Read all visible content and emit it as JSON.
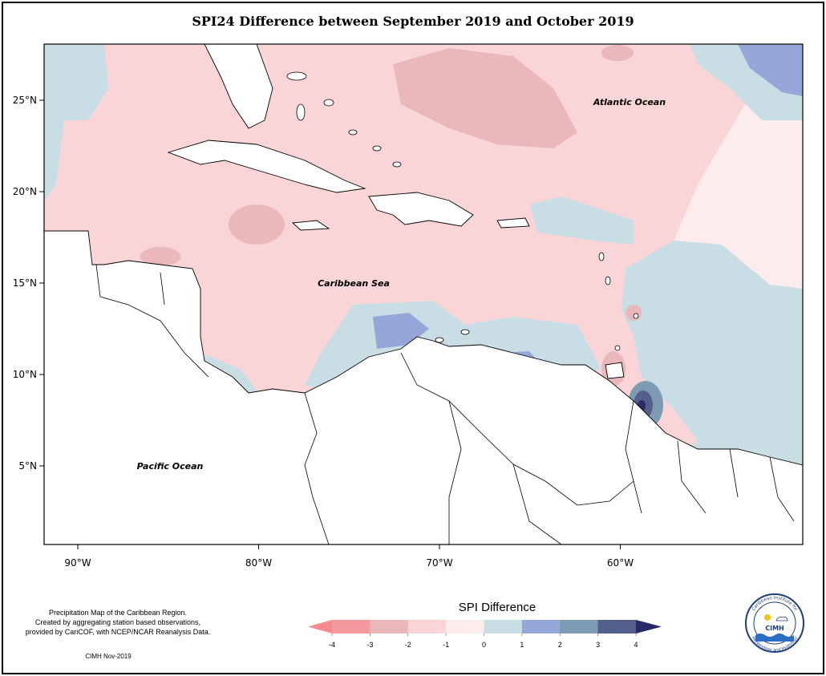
{
  "title": "SPI24 Difference between September 2019 and October 2019",
  "map": {
    "lat_ticks": [
      {
        "value": 25,
        "label": "25°N"
      },
      {
        "value": 20,
        "label": "20°N"
      },
      {
        "value": 15,
        "label": "15°N"
      },
      {
        "value": 10,
        "label": "10°N"
      },
      {
        "value": 5,
        "label": "5°N"
      }
    ],
    "lon_ticks": [
      {
        "value": -90,
        "label": "90°W"
      },
      {
        "value": -80,
        "label": "80°W"
      },
      {
        "value": -70,
        "label": "70°W"
      },
      {
        "value": -60,
        "label": "60°W"
      }
    ],
    "labels": {
      "atlantic": "Atlantic Ocean",
      "caribbean": "Caribbean Sea",
      "pacific": "Pacific Ocean"
    }
  },
  "notes": {
    "line1": "Precipitation Map of the Caribbean Region.",
    "line2": "Created by aggregating station based observations,",
    "line3": "provided by CariCOF, with NCEP/NCAR Reanalysis Data.",
    "credit": "CIMH Nov-2019"
  },
  "legend": {
    "title": "SPI Difference",
    "ticks": [
      "-4",
      "-3",
      "-2",
      "-1",
      "0",
      "1",
      "2",
      "3",
      "4"
    ],
    "colors": [
      "#f4999e",
      "#eab8ba",
      "#f9d5d8",
      "#fdecec",
      "#c8dee4",
      "#95a6d8",
      "#7d9cb4",
      "#545f8b",
      "#2a2e68"
    ],
    "low_arrow_color": "#f58a8e",
    "high_arrow_color": "#262a66"
  },
  "logo": {
    "name": "CIMH",
    "ring_top": "Caribbean Institute for",
    "ring_bottom": "Meteorology and Hydrology"
  }
}
